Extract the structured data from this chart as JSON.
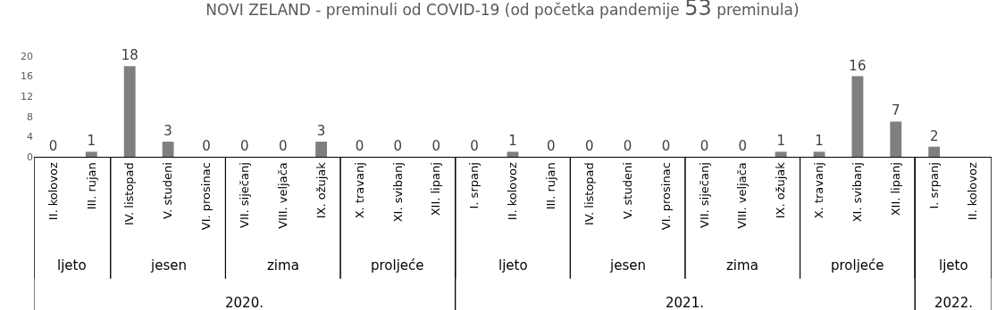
{
  "chart_data": {
    "type": "bar",
    "title": "NOVI ZELAND - preminuli od COVID-19 (od početka pandemije 53 preminula)",
    "categories": [
      "II. kolovoz",
      "III. rujan",
      "IV. listopad",
      "V. studeni",
      "VI. prosinac",
      "VII. siječanj",
      "VIII. veljača",
      "IX. ožujak",
      "X. travanj",
      "XI. svibanj",
      "XII. lipanj",
      "I. srpanj",
      "II. kolovoz",
      "III. rujan",
      "IV. listopad",
      "V. studeni",
      "VI. prosinac",
      "VII. siječanj",
      "VIII. veljača",
      "IX. ožujak",
      "X. travanj",
      "XI. svibanj",
      "XII. lipanj",
      "I. srpanj",
      "II. kolovoz"
    ],
    "values": [
      0,
      1,
      18,
      3,
      0,
      0,
      0,
      3,
      0,
      0,
      0,
      0,
      1,
      0,
      0,
      0,
      0,
      0,
      0,
      1,
      1,
      16,
      7,
      2,
      null
    ],
    "color": "#7f7f7f",
    "data_labels": true,
    "ylim": [
      0,
      20
    ],
    "yticks": [
      0,
      4,
      8,
      12,
      16,
      20
    ],
    "grid": false,
    "legend": false,
    "annotations": [
      "ljeto",
      "jesen",
      "zima",
      "proljeće",
      "ljeto",
      "jesen",
      "zima",
      "proljeće",
      "ljeto",
      "2020.",
      "2021.",
      "2022."
    ]
  }
}
